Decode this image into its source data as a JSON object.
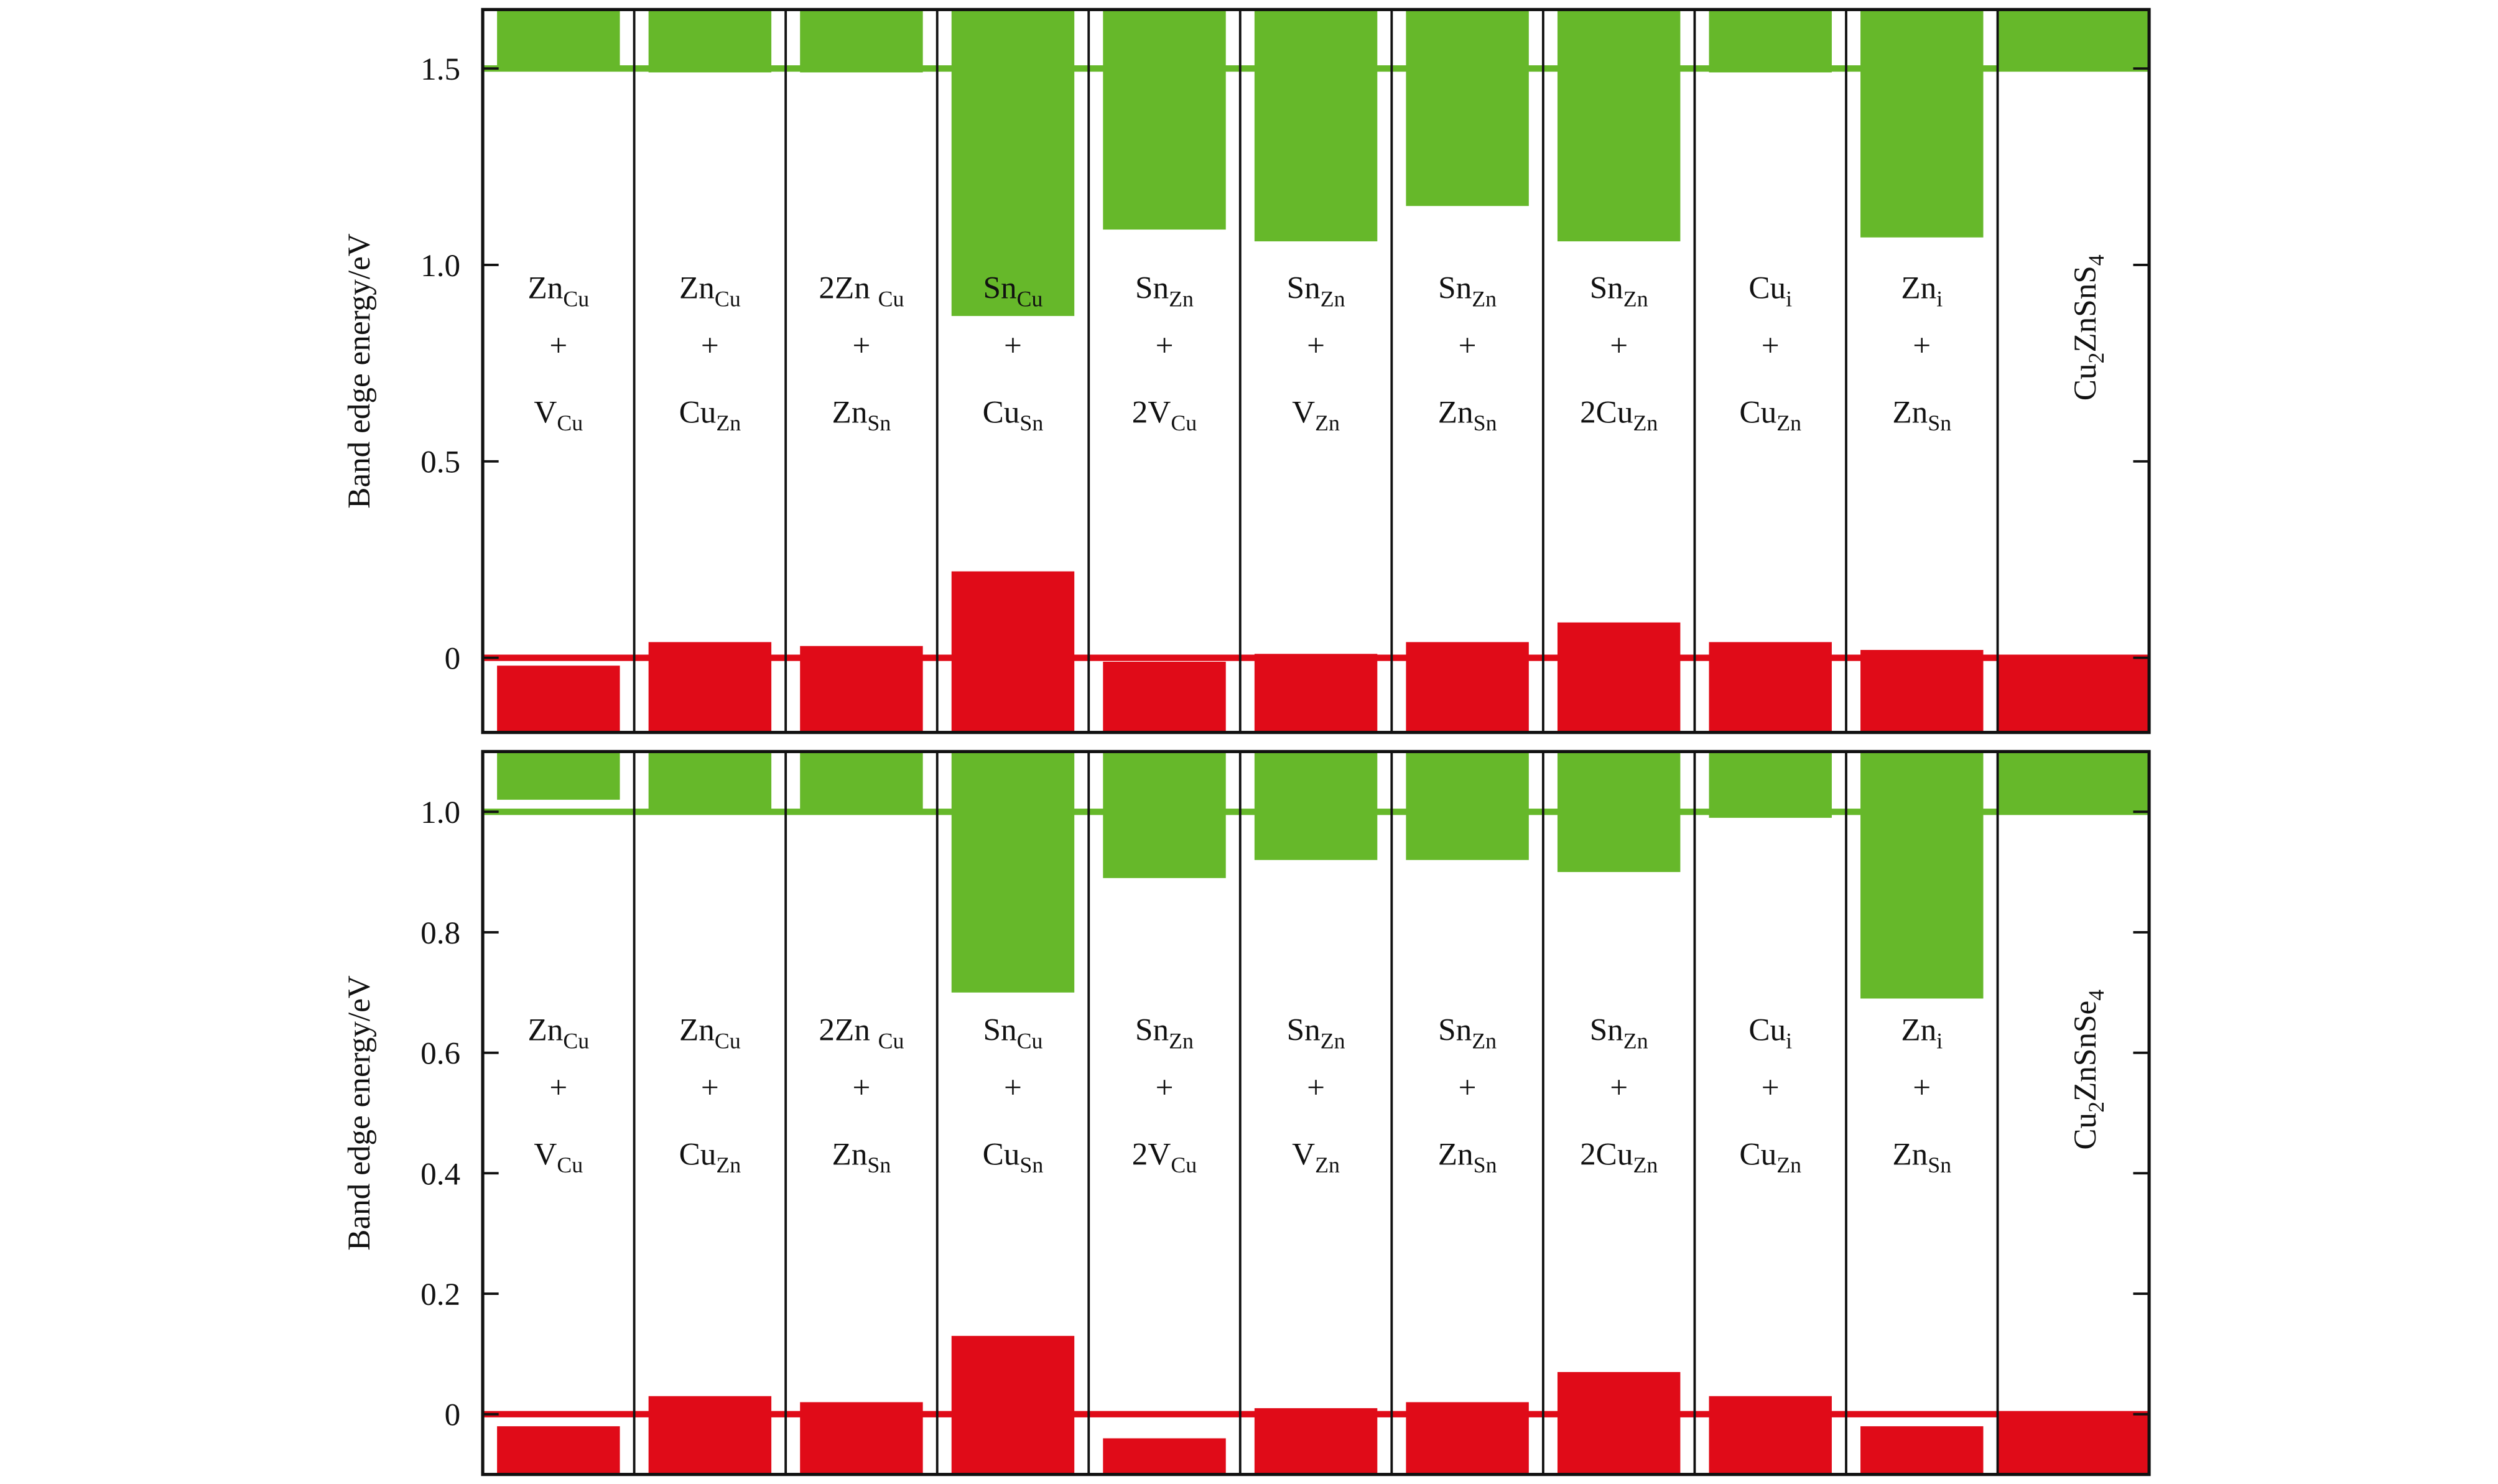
{
  "chart_data": [
    {
      "type": "band-edge",
      "ylabel": "Band edge energy/eV",
      "ylim": [
        -0.19,
        1.65
      ],
      "yticks": [
        0,
        0.5,
        {
          "value": 1,
          "label": "1.0"
        },
        1.5
      ],
      "cbm_ref": 1.5,
      "vbm_ref": 0,
      "conduction": {
        "color": "#66b82a",
        "values": [
          1.5,
          1.49,
          1.49,
          0.87,
          1.09,
          1.06,
          1.15,
          1.06,
          1.49,
          1.07,
          1.5
        ]
      },
      "valence": {
        "color": "#e00b18",
        "values": [
          -0.02,
          0.04,
          0.03,
          0.22,
          -0.01,
          0.01,
          0.04,
          0.09,
          0.04,
          0.02,
          0
        ]
      },
      "labels": [
        {
          "top": [
            {
              "t": "Zn"
            },
            {
              "sub": "Cu"
            }
          ],
          "op": "+",
          "bottom": [
            {
              "t": "V"
            },
            {
              "sub": "Cu"
            }
          ]
        },
        {
          "top": [
            {
              "t": "Zn"
            },
            {
              "sub": "Cu"
            }
          ],
          "op": "+",
          "bottom": [
            {
              "t": "Cu"
            },
            {
              "sub": "Zn"
            }
          ]
        },
        {
          "top": [
            {
              "t": "2Zn "
            },
            {
              "sub": "Cu"
            }
          ],
          "op": "+",
          "bottom": [
            {
              "t": "Zn"
            },
            {
              "sub": "Sn"
            }
          ]
        },
        {
          "top": [
            {
              "t": "Sn"
            },
            {
              "sub": "Cu"
            }
          ],
          "op": "+",
          "bottom": [
            {
              "t": "Cu"
            },
            {
              "sub": "Sn"
            }
          ]
        },
        {
          "top": [
            {
              "t": "Sn"
            },
            {
              "sub": "Zn"
            }
          ],
          "op": "+",
          "bottom": [
            {
              "t": "2V"
            },
            {
              "sub": "Cu"
            }
          ]
        },
        {
          "top": [
            {
              "t": "Sn"
            },
            {
              "sub": "Zn"
            }
          ],
          "op": "+",
          "bottom": [
            {
              "t": "V"
            },
            {
              "sub": "Zn"
            }
          ]
        },
        {
          "top": [
            {
              "t": "Sn"
            },
            {
              "sub": "Zn"
            }
          ],
          "op": "+",
          "bottom": [
            {
              "t": "Zn"
            },
            {
              "sub": "Sn"
            }
          ]
        },
        {
          "top": [
            {
              "t": "Sn"
            },
            {
              "sub": "Zn"
            }
          ],
          "op": "+",
          "bottom": [
            {
              "t": "2Cu"
            },
            {
              "sub": "Zn"
            }
          ]
        },
        {
          "top": [
            {
              "t": "Cu"
            },
            {
              "sub": "i"
            }
          ],
          "op": "+",
          "bottom": [
            {
              "t": "Cu"
            },
            {
              "sub": "Zn"
            }
          ]
        },
        {
          "top": [
            {
              "t": "Zn"
            },
            {
              "sub": "i"
            }
          ],
          "op": "+",
          "bottom": [
            {
              "t": "Zn"
            },
            {
              "sub": "Sn"
            }
          ]
        },
        {
          "rotated": [
            {
              "t": "Cu"
            },
            {
              "sub": "2"
            },
            {
              "t": "ZnSnS"
            },
            {
              "sub": "4"
            }
          ]
        }
      ]
    },
    {
      "type": "band-edge",
      "ylabel": "Band edge energy/eV",
      "ylim": [
        -0.1,
        1.1
      ],
      "yticks": [
        0,
        0.2,
        0.4,
        0.6,
        0.8,
        {
          "value": 1,
          "label": "1.0"
        }
      ],
      "cbm_ref": 1,
      "vbm_ref": 0,
      "conduction": {
        "color": "#66b82a",
        "values": [
          1.02,
          1.0,
          1.0,
          0.7,
          0.89,
          0.92,
          0.92,
          0.9,
          0.99,
          0.69,
          1.0
        ]
      },
      "valence": {
        "color": "#e00b18",
        "values": [
          -0.02,
          0.03,
          0.02,
          0.13,
          -0.04,
          0.01,
          0.02,
          0.07,
          0.03,
          -0.02,
          0
        ]
      },
      "labels": [
        {
          "top": [
            {
              "t": "Zn"
            },
            {
              "sub": "Cu"
            }
          ],
          "op": "+",
          "bottom": [
            {
              "t": "V"
            },
            {
              "sub": "Cu"
            }
          ]
        },
        {
          "top": [
            {
              "t": "Zn"
            },
            {
              "sub": "Cu"
            }
          ],
          "op": "+",
          "bottom": [
            {
              "t": "Cu"
            },
            {
              "sub": "Zn"
            }
          ]
        },
        {
          "top": [
            {
              "t": "2Zn "
            },
            {
              "sub": "Cu"
            }
          ],
          "op": "+",
          "bottom": [
            {
              "t": "Zn"
            },
            {
              "sub": "Sn"
            }
          ]
        },
        {
          "top": [
            {
              "t": "Sn"
            },
            {
              "sub": "Cu"
            }
          ],
          "op": "+",
          "bottom": [
            {
              "t": "Cu"
            },
            {
              "sub": "Sn"
            }
          ]
        },
        {
          "top": [
            {
              "t": "Sn"
            },
            {
              "sub": "Zn"
            }
          ],
          "op": "+",
          "bottom": [
            {
              "t": "2V"
            },
            {
              "sub": "Cu"
            }
          ]
        },
        {
          "top": [
            {
              "t": "Sn"
            },
            {
              "sub": "Zn"
            }
          ],
          "op": "+",
          "bottom": [
            {
              "t": "V"
            },
            {
              "sub": "Zn"
            }
          ]
        },
        {
          "top": [
            {
              "t": "Sn"
            },
            {
              "sub": "Zn"
            }
          ],
          "op": "+",
          "bottom": [
            {
              "t": "Zn"
            },
            {
              "sub": "Sn"
            }
          ]
        },
        {
          "top": [
            {
              "t": "Sn"
            },
            {
              "sub": "Zn"
            }
          ],
          "op": "+",
          "bottom": [
            {
              "t": "2Cu"
            },
            {
              "sub": "Zn"
            }
          ]
        },
        {
          "top": [
            {
              "t": "Cu"
            },
            {
              "sub": "i"
            }
          ],
          "op": "+",
          "bottom": [
            {
              "t": "Cu"
            },
            {
              "sub": "Zn"
            }
          ]
        },
        {
          "top": [
            {
              "t": "Zn"
            },
            {
              "sub": "i"
            }
          ],
          "op": "+",
          "bottom": [
            {
              "t": "Zn"
            },
            {
              "sub": "Sn"
            }
          ]
        },
        {
          "rotated": [
            {
              "t": "Cu"
            },
            {
              "sub": "2"
            },
            {
              "t": "ZnSnSe"
            },
            {
              "sub": "4"
            }
          ]
        }
      ]
    }
  ]
}
